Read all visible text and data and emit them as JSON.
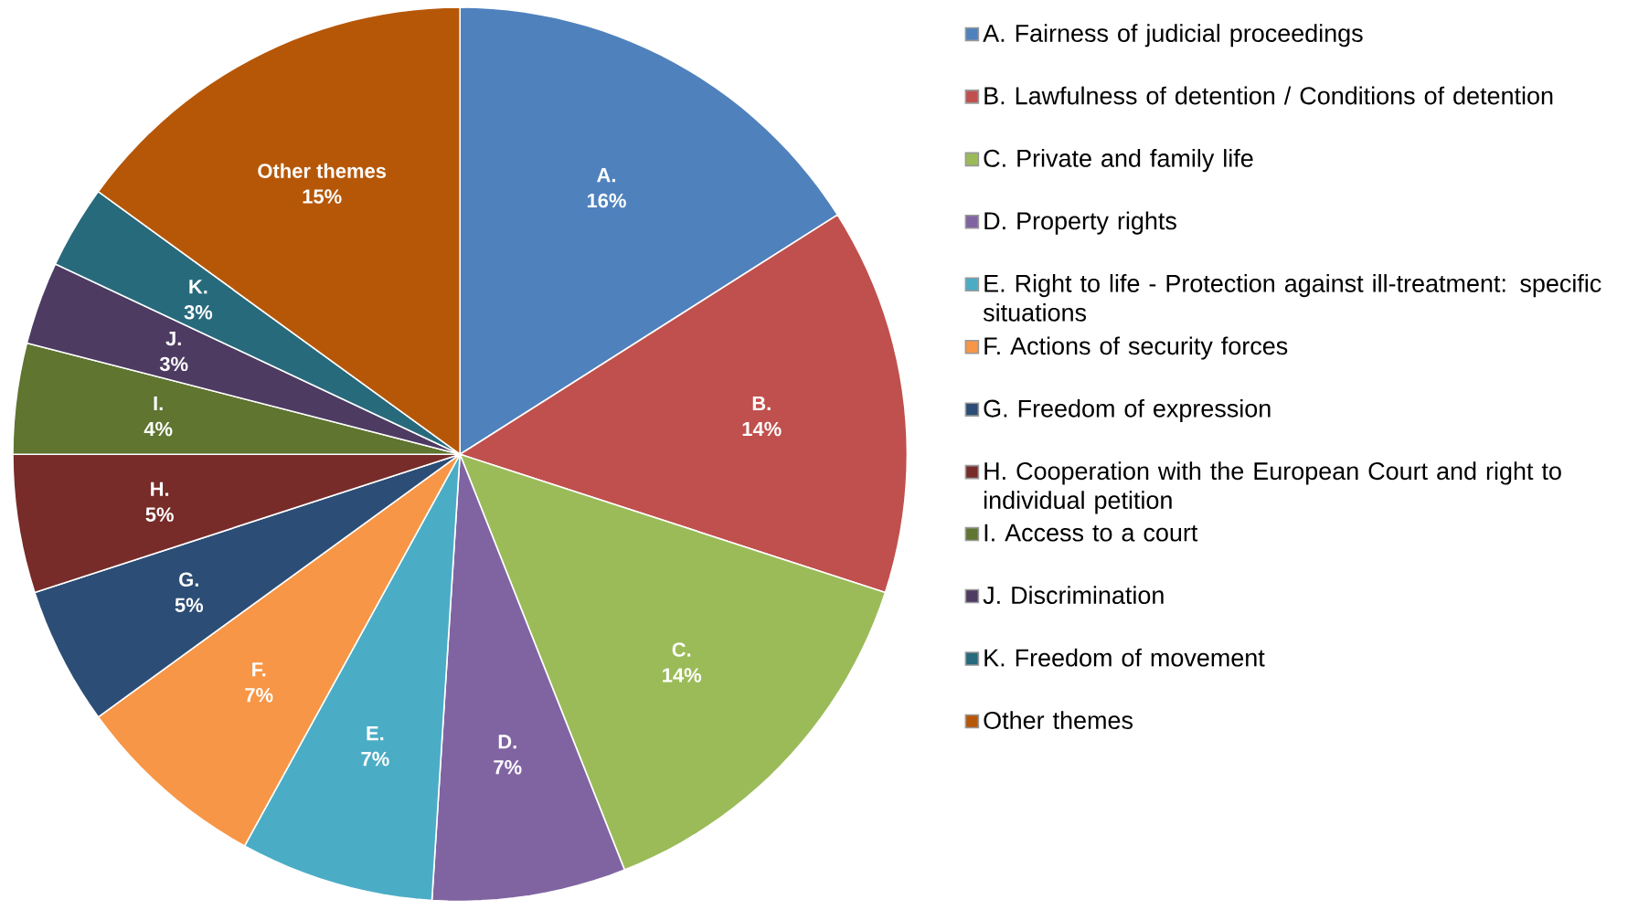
{
  "chart_data": {
    "type": "pie",
    "categories": [
      "A. Fairness of judicial proceedings",
      "B. Lawfulness of detention / Conditions of detention",
      "C. Private and family life",
      "D. Property rights",
      "E. Right to life - Protection against ill-treatment: specific situations",
      "F. Actions of security forces",
      "G. Freedom of expression",
      "H. Cooperation with the European Court and right to individual petition",
      "I. Access to a court",
      "J. Discrimination",
      "K. Freedom of movement",
      "Other themes"
    ],
    "values": [
      16,
      14,
      14,
      7,
      7,
      7,
      5,
      5,
      4,
      3,
      3,
      15
    ],
    "value_labels": [
      "16%",
      "14%",
      "14%",
      "7%",
      "7%",
      "7%",
      "5%",
      "5%",
      "4%",
      "3%",
      "3%",
      "15%"
    ],
    "colors": [
      "#4f81bd",
      "#c0504d",
      "#9bbb59",
      "#8064a2",
      "#4bacc6",
      "#f79646",
      "#2c4d75",
      "#772c2a",
      "#5f7530",
      "#4d3b62",
      "#276a7c",
      "#b65708"
    ],
    "annotations": [
      {
        "text": "A.",
        "x": "A. Fairness of judicial proceedings"
      },
      {
        "text": "B.",
        "x": "B. Lawfulness of detention / Conditions of detention"
      },
      {
        "text": "C.",
        "x": "C. Private and family life"
      },
      {
        "text": "D.",
        "x": "D. Property rights"
      },
      {
        "text": "E.",
        "x": "E. Right to life - Protection against ill-treatment: specific situations"
      },
      {
        "text": "F.",
        "x": "F. Actions of security forces"
      },
      {
        "text": "G.",
        "x": "G. Freedom of expression"
      },
      {
        "text": "H.",
        "x": "H. Cooperation with the European Court and right to individual petition"
      },
      {
        "text": "I.",
        "x": "I. Access to a court"
      },
      {
        "text": "J.",
        "x": "J. Discrimination"
      },
      {
        "text": "K.",
        "x": "K. Freedom of movement"
      },
      {
        "text": "Other themes",
        "x": "Other themes"
      }
    ],
    "legend": "right"
  }
}
